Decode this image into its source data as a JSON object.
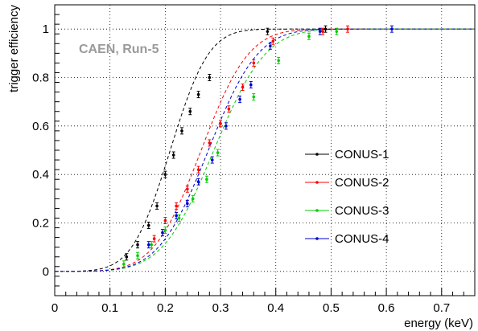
{
  "chart_data": {
    "type": "scatter",
    "title": "",
    "xlabel": "energy (keV)",
    "ylabel": "trigger efficiency",
    "annotation": "CAEN, Run-5",
    "xlim": [
      0,
      0.76
    ],
    "ylim": [
      -0.1,
      1.1
    ],
    "x_ticks": [
      0,
      0.1,
      0.2,
      0.3,
      0.4,
      0.5,
      0.6,
      0.7
    ],
    "x_tick_labels": [
      "0",
      "0.1",
      "0.2",
      "0.3",
      "0.4",
      "0.5",
      "0.6",
      "0.7"
    ],
    "y_ticks": [
      0,
      0.2,
      0.4,
      0.6,
      0.8,
      1
    ],
    "y_tick_labels": [
      "0",
      "0.2",
      "0.4",
      "0.6",
      "0.8",
      "1"
    ],
    "grid": true,
    "legend_position": "center-right",
    "fit_curves": "dashed",
    "series": [
      {
        "name": "CONUS-1",
        "color": "#000000",
        "points": [
          [
            0.13,
            0.06
          ],
          [
            0.15,
            0.11
          ],
          [
            0.17,
            0.19
          ],
          [
            0.185,
            0.27
          ],
          [
            0.2,
            0.4
          ],
          [
            0.215,
            0.48
          ],
          [
            0.23,
            0.58
          ],
          [
            0.245,
            0.66
          ],
          [
            0.26,
            0.73
          ],
          [
            0.28,
            0.8
          ],
          [
            0.385,
            0.99
          ],
          [
            0.49,
            1.0
          ]
        ],
        "fit": {
          "mu": 0.209,
          "sigma": 0.0547
        }
      },
      {
        "name": "CONUS-2",
        "color": "#ff0000",
        "points": [
          [
            0.18,
            0.135
          ],
          [
            0.2,
            0.21
          ],
          [
            0.22,
            0.27
          ],
          [
            0.24,
            0.34
          ],
          [
            0.26,
            0.42
          ],
          [
            0.28,
            0.53
          ],
          [
            0.3,
            0.61
          ],
          [
            0.315,
            0.67
          ],
          [
            0.34,
            0.76
          ],
          [
            0.36,
            0.86
          ],
          [
            0.395,
            0.95
          ],
          [
            0.485,
            0.99
          ],
          [
            0.53,
            1.0
          ]
        ],
        "fit": {
          "mu": 0.265,
          "sigma": 0.0676
        }
      },
      {
        "name": "CONUS-3",
        "color": "#00cc00",
        "points": [
          [
            0.125,
            0.03
          ],
          [
            0.15,
            0.065
          ],
          [
            0.175,
            0.11
          ],
          [
            0.2,
            0.17
          ],
          [
            0.225,
            0.22
          ],
          [
            0.25,
            0.3
          ],
          [
            0.275,
            0.38
          ],
          [
            0.295,
            0.49
          ],
          [
            0.36,
            0.72
          ],
          [
            0.405,
            0.87
          ],
          [
            0.46,
            0.97
          ],
          [
            0.51,
            0.99
          ]
        ],
        "fit": {
          "mu": 0.288,
          "sigma": 0.0735
        }
      },
      {
        "name": "CONUS-4",
        "color": "#0000cc",
        "points": [
          [
            0.17,
            0.11
          ],
          [
            0.195,
            0.16
          ],
          [
            0.22,
            0.23
          ],
          [
            0.24,
            0.28
          ],
          [
            0.26,
            0.37
          ],
          [
            0.285,
            0.46
          ],
          [
            0.31,
            0.6
          ],
          [
            0.335,
            0.71
          ],
          [
            0.355,
            0.77
          ],
          [
            0.39,
            0.93
          ],
          [
            0.48,
            0.99
          ],
          [
            0.61,
            1.0
          ]
        ],
        "fit": {
          "mu": 0.278,
          "sigma": 0.0706
        }
      }
    ]
  }
}
